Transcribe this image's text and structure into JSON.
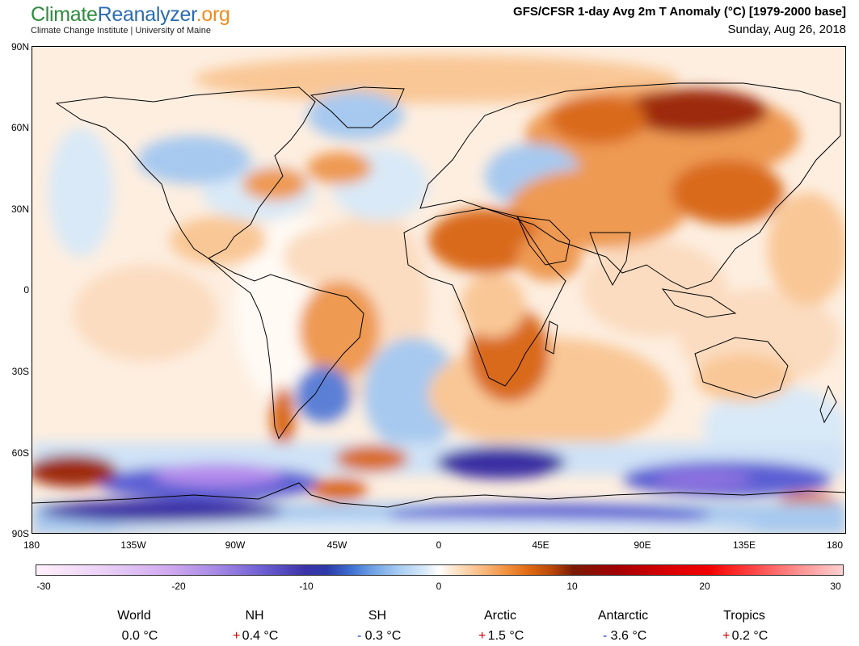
{
  "header": {
    "logo_parts": [
      "Climate",
      "Reanalyzer",
      ".org"
    ],
    "subtitle": "Climate Change Institute | University of Maine",
    "title": "GFS/CFSR 1-day Avg 2m T Anomaly (°C) [1979-2000 base]",
    "date": "Sunday, Aug 26, 2018"
  },
  "map": {
    "lat_labels": [
      "90N",
      "60N",
      "30N",
      "0",
      "30S",
      "60S",
      "90S"
    ],
    "lon_labels": [
      "180",
      "135W",
      "90W",
      "45W",
      "0",
      "45E",
      "90E",
      "135E",
      "180"
    ],
    "colors": {
      "ocean_base": "#fdeee0",
      "warm_light": "#f9c796",
      "warm": "#ee9a52",
      "warm_strong": "#d96b1f",
      "hot": "#9e2c0a",
      "cool_light": "#d9e9f7",
      "cool": "#a7c9ef",
      "cold": "#5c5fd4",
      "very_cold": "#3a2fa3",
      "purple": "#b48bec"
    }
  },
  "colorbar": {
    "ticks": [
      "-30",
      "-20",
      "-10",
      "0",
      "10",
      "20",
      "30"
    ],
    "range": [
      -30,
      30
    ]
  },
  "stats": [
    {
      "region": "World",
      "sign": "",
      "value": "0.0 °C"
    },
    {
      "region": "NH",
      "sign": "+",
      "value": "0.4 °C"
    },
    {
      "region": "SH",
      "sign": "-",
      "value": "0.3 °C"
    },
    {
      "region": "Arctic",
      "sign": "+",
      "value": "1.5 °C"
    },
    {
      "region": "Antarctic",
      "sign": "-",
      "value": "3.6 °C"
    },
    {
      "region": "Tropics",
      "sign": "+",
      "value": "0.2 °C"
    }
  ]
}
